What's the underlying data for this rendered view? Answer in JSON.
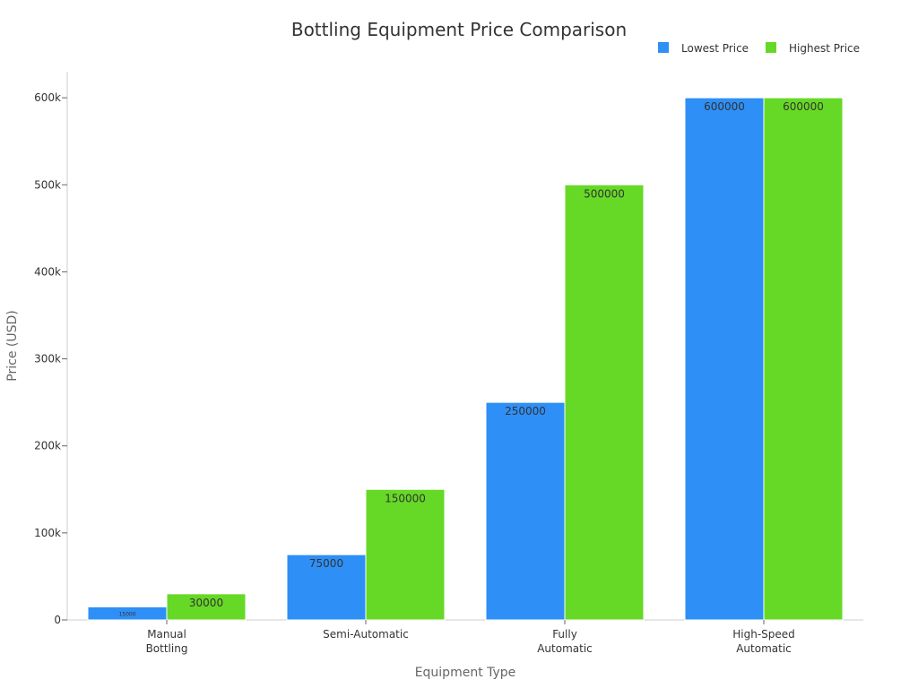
{
  "chart_data": {
    "type": "bar",
    "title": "Bottling Equipment Price Comparison",
    "xlabel": "Equipment Type",
    "ylabel": "Price (USD)",
    "categories": [
      [
        "Manual",
        "Bottling"
      ],
      [
        "Semi-Automatic"
      ],
      [
        "Fully",
        "Automatic"
      ],
      [
        "High-Speed",
        "Automatic"
      ]
    ],
    "series": [
      {
        "name": "Lowest Price",
        "color": "#2E8FF7",
        "values": [
          15000,
          75000,
          250000,
          600000
        ],
        "labels": [
          "15000",
          "75000",
          "250000",
          "600000"
        ]
      },
      {
        "name": "Highest Price",
        "color": "#66D926",
        "values": [
          30000,
          150000,
          500000,
          600000
        ],
        "labels": [
          "30000",
          "150000",
          "500000",
          "600000"
        ]
      }
    ],
    "ylim": [
      0,
      630000
    ],
    "yticks": [
      0,
      100000,
      200000,
      300000,
      400000,
      500000,
      600000
    ],
    "ytick_labels": [
      "0",
      "100k",
      "200k",
      "300k",
      "400k",
      "500k",
      "600k"
    ],
    "legend_position": "top-right",
    "grid": false
  }
}
